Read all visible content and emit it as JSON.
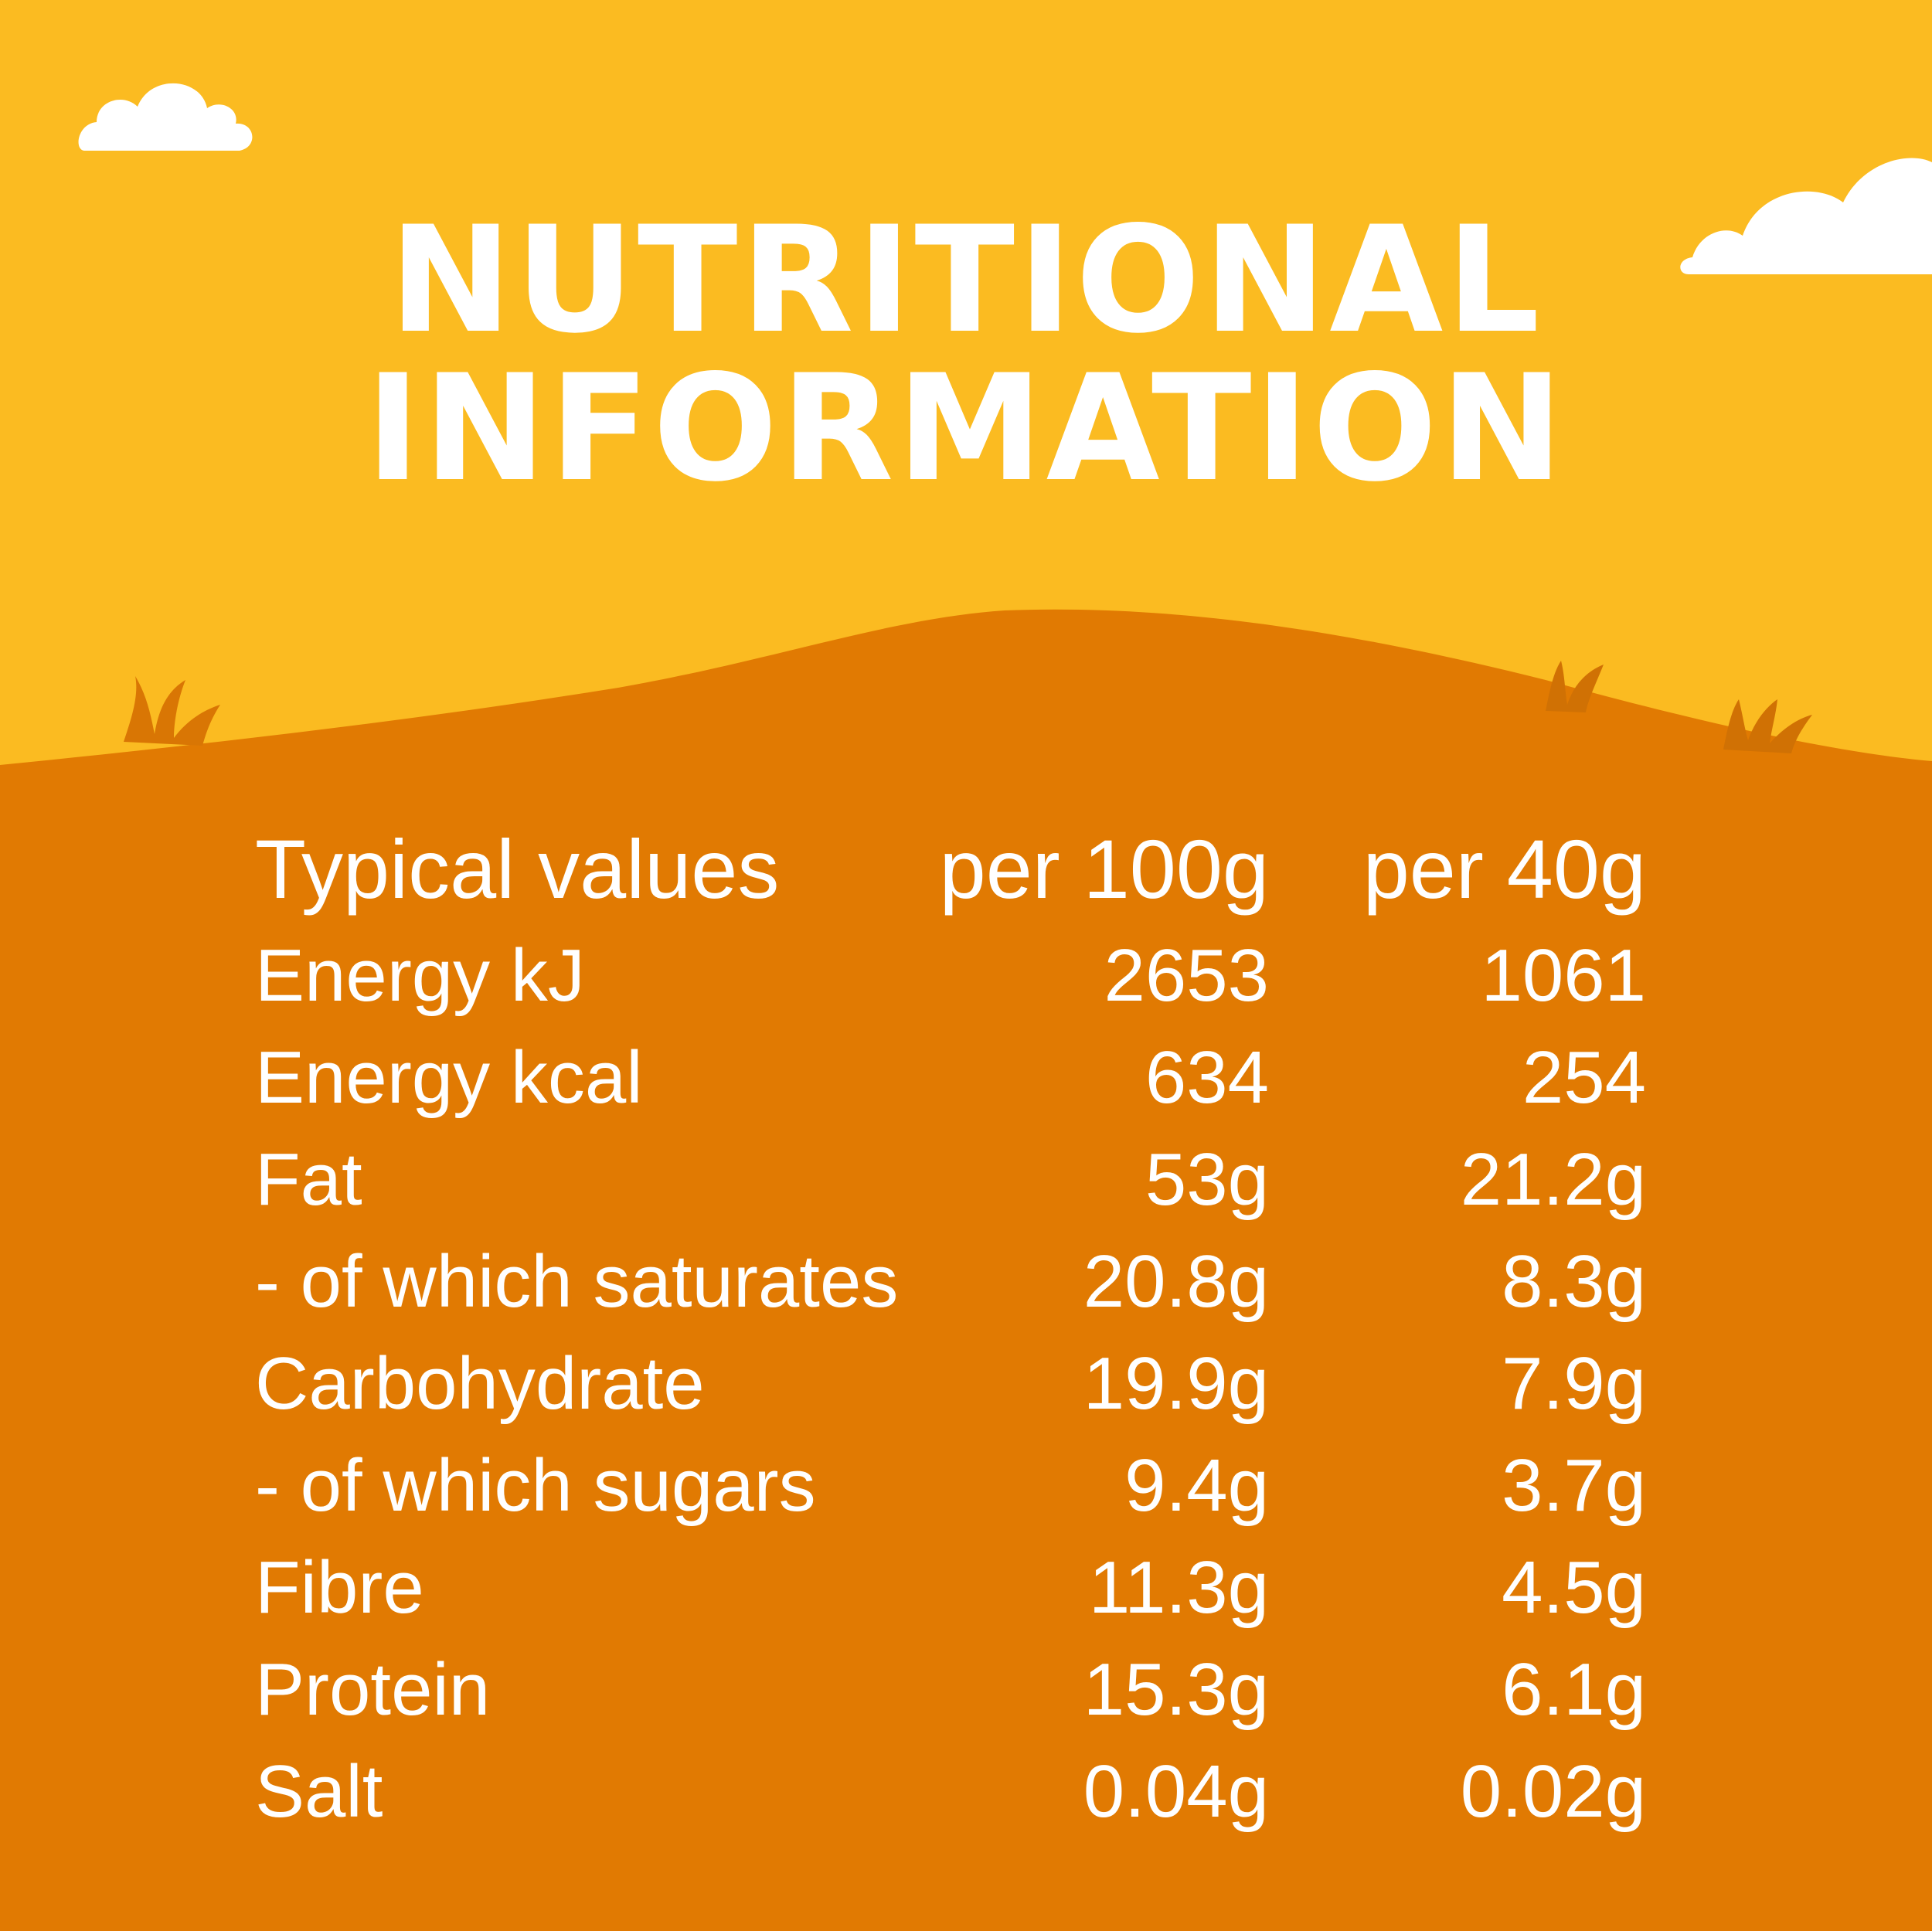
{
  "colors": {
    "sky": "#FBBB21",
    "hill": "#E17A02",
    "text": "#FFFFFF",
    "grass": "#D07104"
  },
  "title": {
    "line1": "NUTRITIONAL",
    "line2": "INFORMATION"
  },
  "table": {
    "headers": {
      "label": "Typical values",
      "per_100g": "per 100g",
      "per_40g": "per 40g"
    },
    "rows": [
      {
        "label": "Energy kJ",
        "per_100g": "2653",
        "per_40g": "1061"
      },
      {
        "label": "Energy kcal",
        "per_100g": "634",
        "per_40g": "254"
      },
      {
        "label": "Fat",
        "per_100g": "53g",
        "per_40g": "21.2g"
      },
      {
        "label": "- of which saturates",
        "per_100g": "20.8g",
        "per_40g": "8.3g"
      },
      {
        "label": "Carbohydrate",
        "per_100g": "19.9g",
        "per_40g": "7.9g"
      },
      {
        "label": "- of which sugars",
        "per_100g": "9.4g",
        "per_40g": "3.7g"
      },
      {
        "label": "Fibre",
        "per_100g": "11.3g",
        "per_40g": "4.5g"
      },
      {
        "label": "Protein",
        "per_100g": "15.3g",
        "per_40g": "6.1g"
      },
      {
        "label": "Salt",
        "per_100g": "0.04g",
        "per_40g": "0.02g"
      }
    ]
  }
}
